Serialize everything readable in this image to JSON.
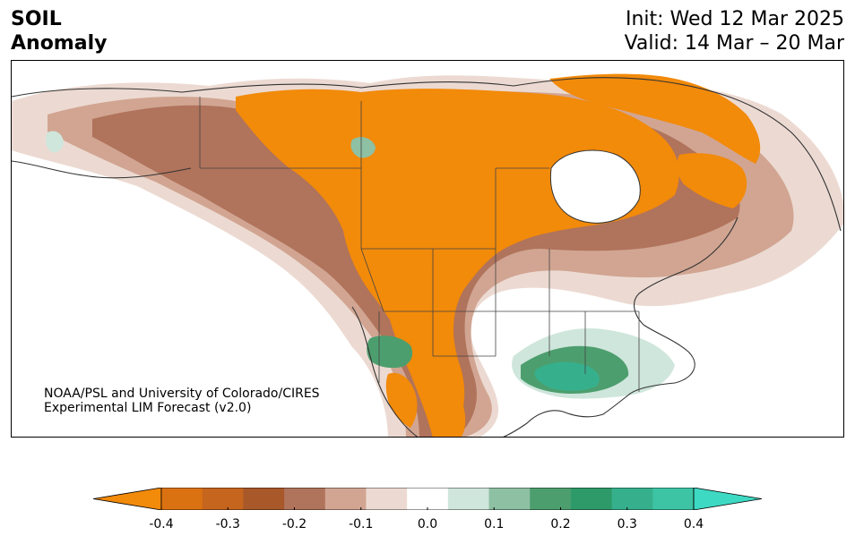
{
  "header": {
    "title_line1": "SOIL",
    "title_line2": "Anomaly",
    "init": "Init: Wed 12 Mar 2025",
    "valid": "Valid: 14 Mar – 20 Mar"
  },
  "map": {
    "credit_line1": "NOAA/PSL and University of Colorado/CIRES",
    "credit_line2": "Experimental LIM Forecast (v2.0)"
  },
  "colorbar": {
    "ticks": [
      "-0.4",
      "-0.3",
      "-0.2",
      "-0.1",
      "0.0",
      "0.1",
      "0.2",
      "0.3",
      "0.4"
    ],
    "levels": [
      {
        "value": -0.4,
        "color": "#f28a0a"
      },
      {
        "value": -0.35,
        "color": "#db7212"
      },
      {
        "value": -0.3,
        "color": "#c6651e"
      },
      {
        "value": -0.25,
        "color": "#a95829"
      },
      {
        "value": -0.2,
        "color": "#b0735b"
      },
      {
        "value": -0.15,
        "color": "#d1a592"
      },
      {
        "value": -0.1,
        "color": "#ecdad2"
      },
      {
        "value": -0.05,
        "color": "#ffffff"
      },
      {
        "value": 0.05,
        "color": "#cfe6dc"
      },
      {
        "value": 0.1,
        "color": "#8ec0a4"
      },
      {
        "value": 0.15,
        "color": "#4d9e6e"
      },
      {
        "value": 0.2,
        "color": "#2e9a6a"
      },
      {
        "value": 0.25,
        "color": "#36b08c"
      },
      {
        "value": 0.3,
        "color": "#3cc4a4"
      },
      {
        "value": 0.35,
        "color": "#3dd9c3"
      }
    ]
  }
}
